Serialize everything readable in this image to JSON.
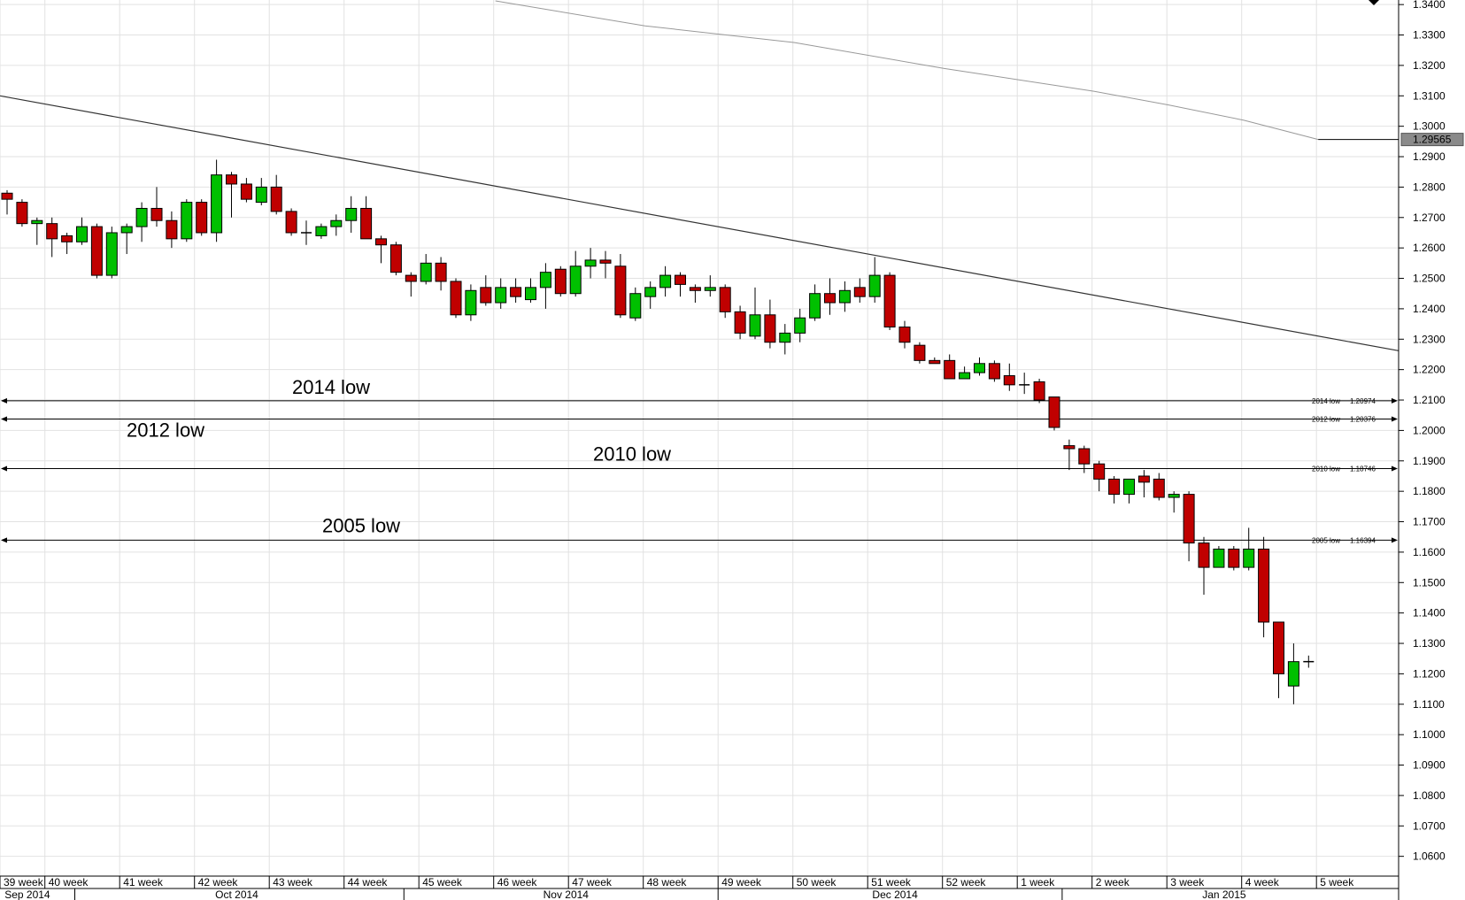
{
  "chart_data": {
    "type": "candlestick",
    "title": "",
    "xlabel": "",
    "ylabel": "",
    "ylim": [
      1.0535,
      1.3415
    ],
    "y_ticks": [
      "1.0600",
      "1.0700",
      "1.0800",
      "1.0900",
      "1.1000",
      "1.1100",
      "1.1200",
      "1.1300",
      "1.1400",
      "1.1500",
      "1.1600",
      "1.1700",
      "1.1800",
      "1.1900",
      "1.2000",
      "1.2100",
      "1.2200",
      "1.2300",
      "1.2400",
      "1.2500",
      "1.2600",
      "1.2700",
      "1.2800",
      "1.2900",
      "1.3000",
      "1.3100",
      "1.3200",
      "1.3300",
      "1.3400"
    ],
    "week_labels": [
      {
        "label": "39 week",
        "bar": 0
      },
      {
        "label": "40 week",
        "bar": 3
      },
      {
        "label": "41 week",
        "bar": 8
      },
      {
        "label": "42 week",
        "bar": 13
      },
      {
        "label": "43 week",
        "bar": 18
      },
      {
        "label": "44 week",
        "bar": 23
      },
      {
        "label": "45 week",
        "bar": 28
      },
      {
        "label": "46 week",
        "bar": 33
      },
      {
        "label": "47 week",
        "bar": 38
      },
      {
        "label": "48 week",
        "bar": 43
      },
      {
        "label": "49 week",
        "bar": 48
      },
      {
        "label": "50 week",
        "bar": 53
      },
      {
        "label": "51 week",
        "bar": 58
      },
      {
        "label": "52 week",
        "bar": 63
      },
      {
        "label": "1 week",
        "bar": 68
      },
      {
        "label": "2 week",
        "bar": 73
      },
      {
        "label": "3 week",
        "bar": 78
      },
      {
        "label": "4 week",
        "bar": 83
      },
      {
        "label": "5 week",
        "bar": 88
      }
    ],
    "month_labels": [
      {
        "label": "Sep 2014",
        "bar": 1
      },
      {
        "label": "Oct 2014",
        "bar": 15
      },
      {
        "label": "Nov 2014",
        "bar": 37
      },
      {
        "label": "Dec 2014",
        "bar": 59
      },
      {
        "label": "Jan 2015",
        "bar": 81
      }
    ],
    "month_separators": [
      5,
      27,
      48,
      71
    ],
    "candles": [
      [
        1.278,
        1.279,
        1.271,
        1.276
      ],
      [
        1.275,
        1.276,
        1.267,
        1.268
      ],
      [
        1.268,
        1.27,
        1.261,
        1.269
      ],
      [
        1.268,
        1.27,
        1.257,
        1.263
      ],
      [
        1.264,
        1.265,
        1.258,
        1.262
      ],
      [
        1.262,
        1.27,
        1.261,
        1.267
      ],
      [
        1.267,
        1.268,
        1.25,
        1.251
      ],
      [
        1.251,
        1.267,
        1.25,
        1.265
      ],
      [
        1.265,
        1.268,
        1.258,
        1.267
      ],
      [
        1.267,
        1.275,
        1.262,
        1.273
      ],
      [
        1.273,
        1.28,
        1.267,
        1.269
      ],
      [
        1.269,
        1.272,
        1.26,
        1.263
      ],
      [
        1.263,
        1.276,
        1.262,
        1.275
      ],
      [
        1.275,
        1.276,
        1.264,
        1.265
      ],
      [
        1.265,
        1.289,
        1.262,
        1.284
      ],
      [
        1.284,
        1.285,
        1.27,
        1.281
      ],
      [
        1.281,
        1.283,
        1.275,
        1.276
      ],
      [
        1.275,
        1.283,
        1.274,
        1.28
      ],
      [
        1.28,
        1.284,
        1.271,
        1.272
      ],
      [
        1.272,
        1.273,
        1.264,
        1.265
      ],
      [
        1.265,
        1.269,
        1.261,
        1.265
      ],
      [
        1.264,
        1.268,
        1.263,
        1.267
      ],
      [
        1.267,
        1.271,
        1.264,
        1.269
      ],
      [
        1.269,
        1.277,
        1.265,
        1.273
      ],
      [
        1.273,
        1.277,
        1.263,
        1.263
      ],
      [
        1.263,
        1.264,
        1.255,
        1.261
      ],
      [
        1.261,
        1.262,
        1.251,
        1.252
      ],
      [
        1.251,
        1.252,
        1.244,
        1.249
      ],
      [
        1.249,
        1.258,
        1.248,
        1.255
      ],
      [
        1.255,
        1.257,
        1.246,
        1.249
      ],
      [
        1.249,
        1.25,
        1.237,
        1.238
      ],
      [
        1.238,
        1.248,
        1.236,
        1.246
      ],
      [
        1.247,
        1.251,
        1.241,
        1.242
      ],
      [
        1.242,
        1.25,
        1.24,
        1.247
      ],
      [
        1.247,
        1.25,
        1.242,
        1.244
      ],
      [
        1.243,
        1.25,
        1.242,
        1.247
      ],
      [
        1.247,
        1.255,
        1.24,
        1.252
      ],
      [
        1.253,
        1.254,
        1.244,
        1.245
      ],
      [
        1.245,
        1.259,
        1.244,
        1.254
      ],
      [
        1.254,
        1.26,
        1.25,
        1.256
      ],
      [
        1.256,
        1.259,
        1.25,
        1.255
      ],
      [
        1.254,
        1.258,
        1.237,
        1.238
      ],
      [
        1.237,
        1.247,
        1.236,
        1.245
      ],
      [
        1.244,
        1.249,
        1.24,
        1.247
      ],
      [
        1.247,
        1.254,
        1.244,
        1.251
      ],
      [
        1.251,
        1.252,
        1.244,
        1.248
      ],
      [
        1.247,
        1.248,
        1.242,
        1.246
      ],
      [
        1.246,
        1.251,
        1.244,
        1.247
      ],
      [
        1.247,
        1.248,
        1.237,
        1.239
      ],
      [
        1.239,
        1.241,
        1.23,
        1.232
      ],
      [
        1.231,
        1.247,
        1.23,
        1.238
      ],
      [
        1.238,
        1.243,
        1.227,
        1.229
      ],
      [
        1.229,
        1.235,
        1.225,
        1.232
      ],
      [
        1.232,
        1.24,
        1.229,
        1.237
      ],
      [
        1.237,
        1.248,
        1.236,
        1.245
      ],
      [
        1.245,
        1.25,
        1.238,
        1.242
      ],
      [
        1.242,
        1.249,
        1.239,
        1.246
      ],
      [
        1.247,
        1.25,
        1.242,
        1.244
      ],
      [
        1.244,
        1.257,
        1.242,
        1.251
      ],
      [
        1.251,
        1.252,
        1.233,
        1.234
      ],
      [
        1.234,
        1.236,
        1.227,
        1.229
      ],
      [
        1.228,
        1.229,
        1.222,
        1.223
      ],
      [
        1.223,
        1.224,
        1.222,
        1.222
      ],
      [
        1.223,
        1.225,
        1.217,
        1.217
      ],
      [
        1.217,
        1.221,
        1.217,
        1.219
      ],
      [
        1.219,
        1.224,
        1.218,
        1.222
      ],
      [
        1.222,
        1.223,
        1.216,
        1.217
      ],
      [
        1.218,
        1.222,
        1.213,
        1.215
      ],
      [
        1.215,
        1.219,
        1.212,
        1.215
      ],
      [
        1.216,
        1.217,
        1.209,
        1.21
      ],
      [
        1.211,
        1.211,
        1.2,
        1.201
      ],
      [
        1.195,
        1.197,
        1.187,
        1.194
      ],
      [
        1.194,
        1.195,
        1.186,
        1.189
      ],
      [
        1.189,
        1.19,
        1.18,
        1.184
      ],
      [
        1.184,
        1.185,
        1.176,
        1.179
      ],
      [
        1.179,
        1.184,
        1.176,
        1.184
      ],
      [
        1.185,
        1.187,
        1.178,
        1.183
      ],
      [
        1.184,
        1.186,
        1.177,
        1.178
      ],
      [
        1.178,
        1.18,
        1.173,
        1.179
      ],
      [
        1.179,
        1.18,
        1.157,
        1.163
      ],
      [
        1.163,
        1.165,
        1.146,
        1.155
      ],
      [
        1.155,
        1.162,
        1.155,
        1.161
      ],
      [
        1.161,
        1.162,
        1.154,
        1.155
      ],
      [
        1.155,
        1.168,
        1.154,
        1.161
      ],
      [
        1.161,
        1.165,
        1.132,
        1.137
      ],
      [
        1.137,
        1.137,
        1.112,
        1.12
      ],
      [
        1.116,
        1.13,
        1.11,
        1.124
      ],
      [
        1.124,
        1.126,
        1.122,
        1.124
      ]
    ],
    "up_color": "#00c000",
    "down_color": "#c00000",
    "horizontal_levels": [
      {
        "label": "2014 low",
        "value": 1.20974,
        "tag": "2014 low",
        "value_text": "1.20974"
      },
      {
        "label": "2012 low",
        "value": 1.20376,
        "tag": "2012 low",
        "value_text": "1.20376"
      },
      {
        "label": "2010 low",
        "value": 1.18746,
        "tag": "2010 low",
        "value_text": "1.18746"
      },
      {
        "label": "2005 low",
        "value": 1.16394,
        "tag": "2005 low",
        "value_text": "1.16394"
      }
    ],
    "trendline": {
      "from": {
        "bar": 0,
        "price": 1.31
      },
      "to": {
        "bar": 93,
        "price": 1.2262
      }
    },
    "moving_average": {
      "current_value": 1.29565,
      "current_label": "1.29565",
      "points": [
        {
          "bar": 33,
          "price": 1.3412
        },
        {
          "bar": 43,
          "price": 1.333
        },
        {
          "bar": 53,
          "price": 1.3275
        },
        {
          "bar": 63,
          "price": 1.319
        },
        {
          "bar": 73,
          "price": 1.3115
        },
        {
          "bar": 78,
          "price": 1.307
        },
        {
          "bar": 83,
          "price": 1.302
        },
        {
          "bar": 88,
          "price": 1.29565
        }
      ]
    },
    "grid": true
  }
}
